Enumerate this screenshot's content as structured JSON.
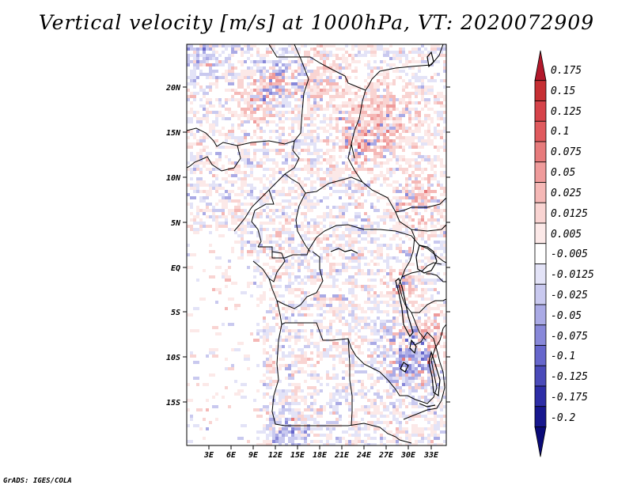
{
  "title": "Vertical velocity [m/s] at 1000hPa, VT: 2020072909",
  "credit": "GrADS: IGES/COLA",
  "map": {
    "variable": "Vertical velocity",
    "units": "m/s",
    "level": "1000hPa",
    "valid_time": "2020072909",
    "lat_labels": [
      "20N",
      "15N",
      "10N",
      "5N",
      "EQ",
      "5S",
      "10S",
      "15S"
    ],
    "lon_labels": [
      "3E",
      "6E",
      "9E",
      "12E",
      "15E",
      "18E",
      "21E",
      "24E",
      "27E",
      "30E",
      "33E"
    ]
  },
  "colorbar": {
    "labels": [
      "0.175",
      "0.15",
      "0.125",
      "0.1",
      "0.075",
      "0.05",
      "0.025",
      "0.0125",
      "0.005",
      "-0.005",
      "-0.0125",
      "-0.025",
      "-0.05",
      "-0.075",
      "-0.1",
      "-0.125",
      "-0.175",
      "-0.2"
    ],
    "colors": [
      "#b2182b",
      "#c62f33",
      "#d6434a",
      "#e05a5e",
      "#e77b7c",
      "#ef9b9b",
      "#f5b8b6",
      "#f9d4d2",
      "#fce9e8",
      "#ffffff",
      "#e3e3f7",
      "#c9c9ef",
      "#aaaae5",
      "#8888d9",
      "#6666cc",
      "#4a4ab9",
      "#2d2da6",
      "#17178e",
      "#0a0a78"
    ]
  }
}
